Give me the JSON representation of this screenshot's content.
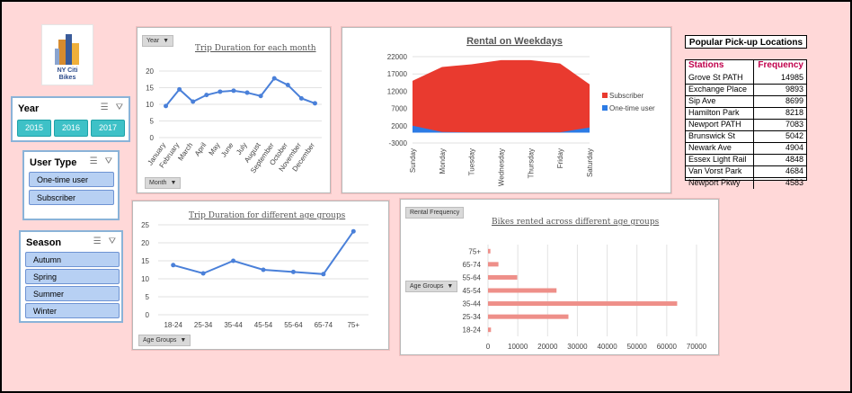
{
  "logo": {
    "line1": "NY Citi",
    "line2": "Bikes"
  },
  "slicers": {
    "year": {
      "label": "Year",
      "items": [
        "2015",
        "2016",
        "2017"
      ]
    },
    "user_type": {
      "label": "User Type",
      "items": [
        "One-time user",
        "Subscriber"
      ]
    },
    "season": {
      "label": "Season",
      "items": [
        "Autumn",
        "Spring",
        "Summer",
        "Winter"
      ]
    }
  },
  "chart1": {
    "filter_button": "Year",
    "axis_button": "Month",
    "chart_data": {
      "type": "line",
      "title": "Trip Duration for each month",
      "categories": [
        "January",
        "February",
        "March",
        "April",
        "May",
        "June",
        "July",
        "August",
        "September",
        "October",
        "November",
        "December"
      ],
      "values": [
        9.5,
        14.5,
        10.8,
        12.8,
        13.8,
        14.1,
        13.5,
        12.5,
        17.8,
        15.8,
        11.8,
        10.3
      ],
      "ylim": [
        0,
        20
      ],
      "yticks": [
        0,
        5,
        10,
        15,
        20
      ]
    }
  },
  "chart2": {
    "chart_data": {
      "type": "area",
      "title": "Rental on Weekdays",
      "categories": [
        "Sunday",
        "Monday",
        "Tuesday",
        "Wednesday",
        "Thursday",
        "Friday",
        "Saturday"
      ],
      "series": [
        {
          "name": "Subscriber",
          "values": [
            15000,
            19000,
            19800,
            21000,
            21000,
            20000,
            14000
          ]
        },
        {
          "name": "One-time user",
          "values": [
            2000,
            200,
            50,
            50,
            50,
            100,
            1500
          ]
        }
      ],
      "ylim": [
        -3000,
        22000
      ],
      "yticks": [
        -3000,
        2000,
        7000,
        12000,
        17000,
        22000
      ],
      "colors": [
        "#e93a2f",
        "#2c7be5"
      ]
    }
  },
  "table": {
    "title": "Popular Pick-up Locations",
    "headers": [
      "Stations",
      "Frequency"
    ],
    "rows": [
      [
        "Grove St PATH",
        "14985"
      ],
      [
        "Exchange Place",
        "9893"
      ],
      [
        "Sip Ave",
        "8699"
      ],
      [
        "Hamilton Park",
        "8218"
      ],
      [
        "Newport PATH",
        "7083"
      ],
      [
        "Brunswick St",
        "5042"
      ],
      [
        "Newark Ave",
        "4904"
      ],
      [
        "Essex Light Rail",
        "4848"
      ],
      [
        "Van Vorst Park",
        "4684"
      ],
      [
        "Newport Pkwy",
        "4583"
      ]
    ]
  },
  "chart3": {
    "axis_button": "Age Groups",
    "chart_data": {
      "type": "line",
      "title": "Trip Duration for different age groups",
      "categories": [
        "18-24",
        "25-34",
        "35-44",
        "45-54",
        "55-64",
        "65-74",
        "75+"
      ],
      "values": [
        13.8,
        11.5,
        15,
        12.5,
        11.9,
        11.3,
        23.2
      ],
      "ylim": [
        0,
        25
      ],
      "yticks": [
        0,
        5,
        10,
        15,
        20,
        25
      ]
    }
  },
  "chart4": {
    "filter_button": "Rental Frequency",
    "axis_button": "Age Groups",
    "chart_data": {
      "type": "bar",
      "orientation": "horizontal",
      "title": "Bikes rented across different age groups",
      "categories": [
        "75+",
        "65-74",
        "55-64",
        "45-54",
        "35-44",
        "25-34",
        "18-24"
      ],
      "values": [
        800,
        3500,
        9800,
        23000,
        63500,
        27000,
        1000
      ],
      "xlim": [
        0,
        70000
      ],
      "xticks": [
        0,
        10000,
        20000,
        30000,
        40000,
        50000,
        60000,
        70000
      ],
      "color": "#ee8f89"
    }
  }
}
